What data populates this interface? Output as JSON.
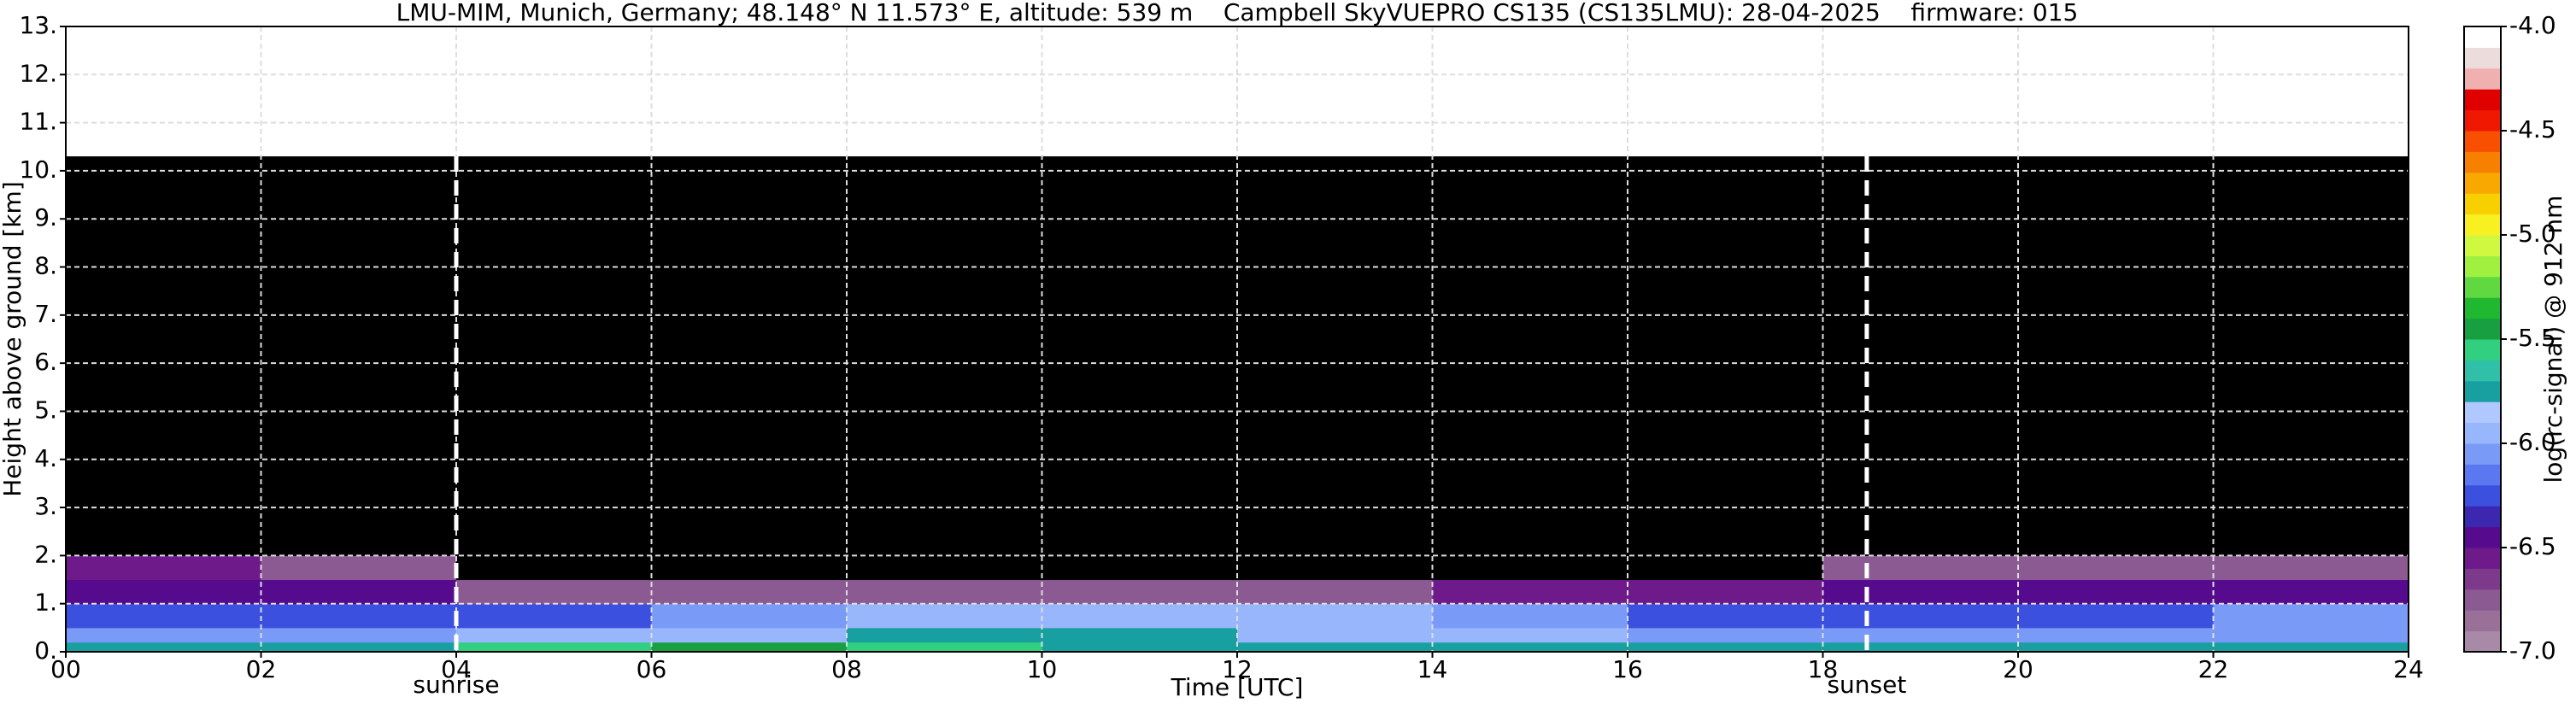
{
  "chart_data": {
    "type": "heatmap",
    "title": "LMU-MIM, Munich, Germany; 48.148° N 11.573° E, altitude: 539 m    Campbell SkyVUEPRO CS135 (CS135LMU): 28-04-2025    firmware: 015",
    "xlabel": "Time [UTC]",
    "ylabel": "Height above ground [km]",
    "colorbar_label": "log(rc-signal) @ 912 nm",
    "xlim": [
      0,
      24
    ],
    "ylim": [
      0,
      13
    ],
    "xticks": [
      {
        "value": 0,
        "label": "00"
      },
      {
        "value": 2,
        "label": "02"
      },
      {
        "value": 4,
        "label": "04"
      },
      {
        "value": 6,
        "label": "06"
      },
      {
        "value": 8,
        "label": "08"
      },
      10,
      12,
      14,
      16,
      18,
      20,
      22,
      24
    ],
    "yticks": [
      {
        "value": 0,
        "label": "0."
      },
      {
        "value": 1,
        "label": "1."
      },
      {
        "value": 2,
        "label": "2."
      },
      {
        "value": 3,
        "label": "3."
      },
      {
        "value": 4,
        "label": "4."
      },
      {
        "value": 5,
        "label": "5."
      },
      {
        "value": 6,
        "label": "6."
      },
      {
        "value": 7,
        "label": "7."
      },
      {
        "value": 8,
        "label": "8."
      },
      {
        "value": 9,
        "label": "9."
      },
      {
        "value": 10,
        "label": "10."
      },
      {
        "value": 11,
        "label": "11."
      },
      {
        "value": 12,
        "label": "12."
      },
      {
        "value": 13,
        "label": "13."
      }
    ],
    "grid": true,
    "zlim": [
      -7,
      -4
    ],
    "zticks": [
      {
        "value": -4,
        "label": "-4.0"
      },
      -4.5,
      {
        "value": -5,
        "label": "-5.0"
      },
      -5.5,
      {
        "value": -6,
        "label": "-6.0"
      },
      -6.5,
      {
        "value": -7,
        "label": "-7.0"
      }
    ],
    "colors": [
      "#a88aa8",
      "#9a7099",
      "#8c5a92",
      "#7d3a8c",
      "#6e1a8a",
      "#560a8e",
      "#3c28b0",
      "#3c50e0",
      "#5a78f0",
      "#7a9af8",
      "#98b6fc",
      "#b0c8ff",
      "#18a0a0",
      "#30c0a8",
      "#30d080",
      "#18a040",
      "#20b830",
      "#60d840",
      "#a0f040",
      "#d0f840",
      "#f8f020",
      "#f8d000",
      "#f8a800",
      "#f88000",
      "#f85000",
      "#f01800",
      "#e00000",
      "#f0b0b0",
      "#ecdcdc",
      "#ffffff"
    ],
    "under_color": "#000000",
    "x_edges": [
      0,
      2,
      4,
      6,
      8,
      10,
      12,
      14,
      16,
      18,
      20,
      22,
      24
    ],
    "y_edges": [
      0,
      0.2,
      0.5,
      1.0,
      1.5,
      2.0,
      10.3
    ],
    "z": [
      [
        -5.7,
        -5.7,
        -5.6,
        -5.4,
        -5.6,
        -5.7,
        -5.8,
        -5.8,
        -5.7,
        -5.7,
        -5.8,
        -5.8
      ],
      [
        -6.1,
        -6.1,
        -6.0,
        -5.9,
        -5.8,
        -5.8,
        -5.9,
        -6.0,
        -6.1,
        -6.1,
        -6.1,
        -6.1
      ],
      [
        -6.2,
        -6.2,
        -6.3,
        -6.1,
        -6.0,
        -6.0,
        -6.0,
        -6.1,
        -6.2,
        -6.2,
        -6.2,
        -6.1
      ],
      [
        -6.4,
        -6.4,
        -6.8,
        -6.8,
        -6.8,
        -6.7,
        -6.7,
        -6.6,
        -6.6,
        -6.5,
        -6.5,
        -6.5
      ],
      [
        -6.6,
        -6.7,
        -7.1,
        -7.1,
        -7.1,
        -7.1,
        -7.1,
        -7.1,
        -7.1,
        -6.8,
        -6.8,
        -6.8
      ],
      [
        -7.2,
        -7.2,
        -7.2,
        -7.2,
        -7.2,
        -7.2,
        -7.2,
        -7.2,
        -7.2,
        -7.2,
        -7.2,
        -7.2
      ]
    ],
    "annotations": [
      {
        "text": "sunrise",
        "x": 4
      },
      {
        "text": "sunset",
        "x": 18.45
      }
    ]
  }
}
